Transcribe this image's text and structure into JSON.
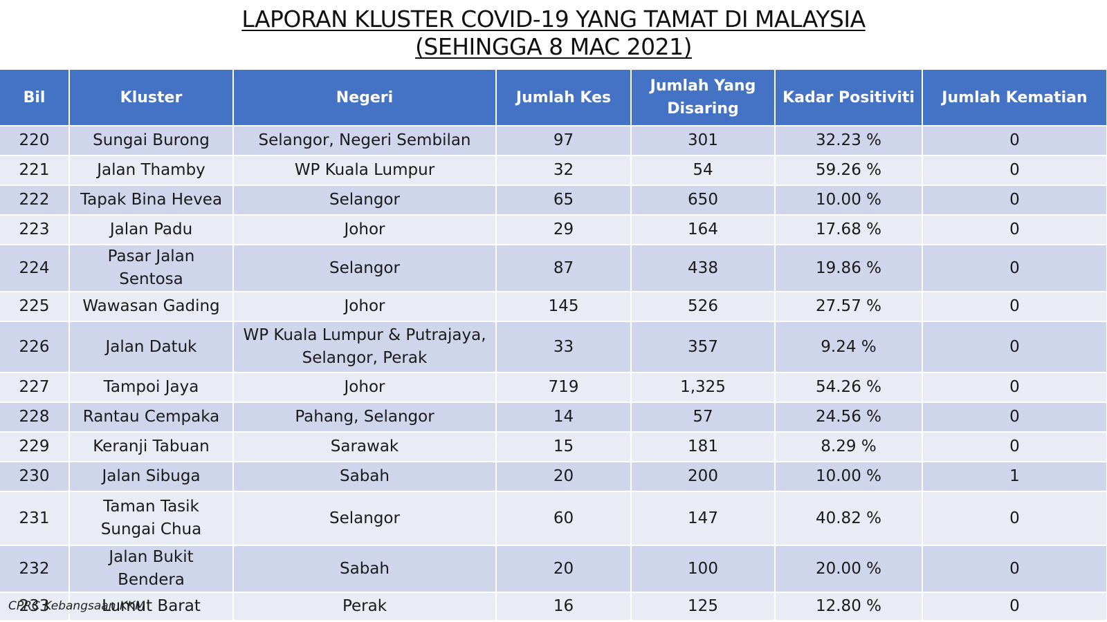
{
  "title": {
    "line1": "LAPORAN KLUSTER COVID-19 YANG TAMAT DI MALAYSIA",
    "line2": "(SEHINGGA  8 MAC 2021)"
  },
  "table": {
    "headers": [
      "Bil",
      "Kluster",
      "Negeri",
      "Jumlah Kes",
      "Jumlah Yang Disaring",
      "Kadar Positiviti",
      "Jumlah Kematian"
    ],
    "rows": [
      [
        "220",
        "Sungai Burong",
        "Selangor, Negeri Sembilan",
        "97",
        "301",
        "32.23 %",
        "0"
      ],
      [
        "221",
        "Jalan Thamby",
        "WP Kuala Lumpur",
        "32",
        "54",
        "59.26 %",
        "0"
      ],
      [
        "222",
        "Tapak Bina Hevea",
        "Selangor",
        "65",
        "650",
        "10.00 %",
        "0"
      ],
      [
        "223",
        "Jalan Padu",
        "Johor",
        "29",
        "164",
        "17.68 %",
        "0"
      ],
      [
        "224",
        "Pasar Jalan Sentosa",
        "Selangor",
        "87",
        "438",
        "19.86 %",
        "0"
      ],
      [
        "225",
        "Wawasan Gading",
        "Johor",
        "145",
        "526",
        "27.57 %",
        "0"
      ],
      [
        "226",
        "Jalan Datuk",
        "WP Kuala Lumpur & Putrajaya, Selangor, Perak",
        "33",
        "357",
        "9.24 %",
        "0"
      ],
      [
        "227",
        "Tampoi Jaya",
        "Johor",
        "719",
        "1,325",
        "54.26 %",
        "0"
      ],
      [
        "228",
        "Rantau Cempaka",
        "Pahang, Selangor",
        "14",
        "57",
        "24.56 %",
        "0"
      ],
      [
        "229",
        "Keranji Tabuan",
        "Sarawak",
        "15",
        "181",
        "8.29 %",
        "0"
      ],
      [
        "230",
        "Jalan Sibuga",
        "Sabah",
        "20",
        "200",
        "10.00 %",
        "1"
      ],
      [
        "231",
        "Taman Tasik Sungai Chua",
        "Selangor",
        "60",
        "147",
        "40.82 %",
        "0"
      ],
      [
        "232",
        "Jalan Bukit Bendera",
        "Sabah",
        "20",
        "100",
        "20.00 %",
        "0"
      ],
      [
        "233",
        "Lumut Barat",
        "Perak",
        "16",
        "125",
        "12.80 %",
        "0"
      ]
    ]
  },
  "footer": "CPRC Kebangsaan KKM",
  "colors": {
    "header_bg": "#4472c4",
    "row_dark": "#cfd5ea",
    "row_light": "#e9ebf5"
  }
}
